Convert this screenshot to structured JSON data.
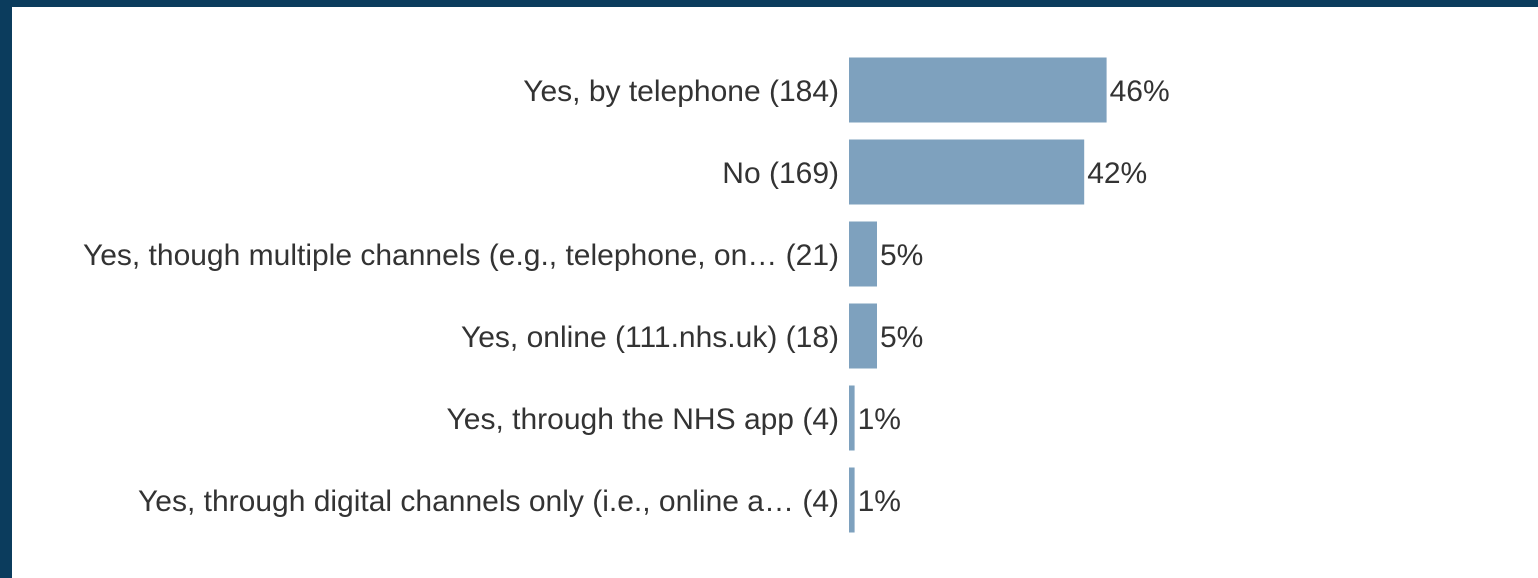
{
  "chart_data": {
    "type": "bar",
    "orientation": "horizontal",
    "categories": [
      "Yes, by telephone (184)",
      "No (169)",
      "Yes, though multiple channels (e.g., telephone, on… (21)",
      "Yes, online (111.nhs.uk) (18)",
      "Yes, through the NHS app (4)",
      "Yes, through digital channels only (i.e., online a… (4)"
    ],
    "values": [
      46,
      42,
      5,
      5,
      1,
      1
    ],
    "value_labels": [
      "46%",
      "42%",
      "5%",
      "5%",
      "1%",
      "1%"
    ],
    "counts": [
      184,
      169,
      21,
      18,
      4,
      4
    ],
    "title": "",
    "xlabel": "",
    "ylabel": "",
    "grid": false,
    "legend": "none",
    "bar_color": "#7ea1be",
    "frame_color": "#0b3c5d"
  }
}
